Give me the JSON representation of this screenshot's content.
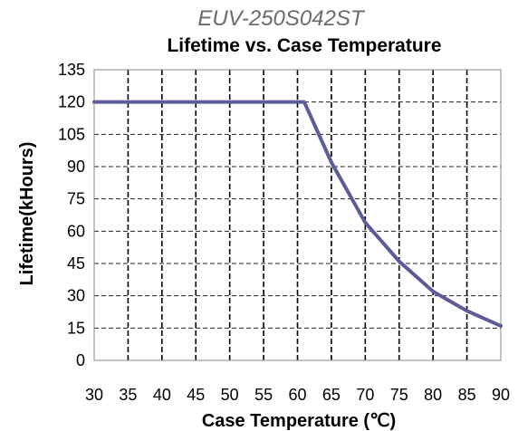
{
  "chart_data": {
    "type": "line",
    "model": "EUV-250S042ST",
    "title": "Lifetime vs. Case Temperature",
    "xlabel": "Case Temperature (℃)",
    "ylabel": "Lifetime(kHours)",
    "xlim": [
      30,
      90
    ],
    "ylim": [
      0,
      135
    ],
    "xticks": [
      30,
      35,
      40,
      45,
      50,
      55,
      60,
      65,
      70,
      75,
      80,
      85,
      90
    ],
    "yticks": [
      0,
      15,
      30,
      45,
      60,
      75,
      90,
      105,
      120,
      135
    ],
    "grid": true,
    "grid_style": "dashed",
    "line_color": "#5c5c99",
    "series": [
      {
        "x": [
          30,
          35,
          40,
          45,
          50,
          55,
          60,
          61,
          65,
          70,
          75,
          80,
          85,
          90
        ],
        "values": [
          120,
          120,
          120,
          120,
          120,
          120,
          120,
          120,
          92,
          64,
          46,
          32,
          23,
          16
        ]
      }
    ]
  }
}
